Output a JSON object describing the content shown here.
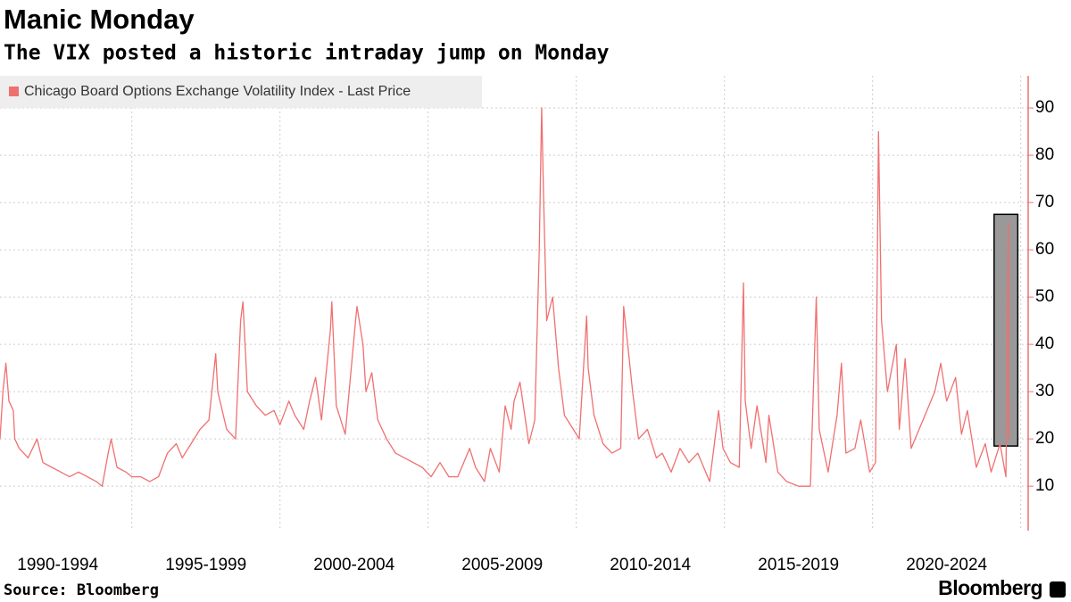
{
  "chart_data": {
    "type": "line",
    "title": "Manic Monday",
    "subtitle": "The VIX posted a historic intraday jump on Monday",
    "source": "Source: Bloomberg",
    "logo": "Bloomberg",
    "series": [
      {
        "name": "Chicago Board Options Exchange Volatility Index - Last Price",
        "color": "#f07070",
        "x": [
          1990.55,
          1990.65,
          1990.75,
          1990.85,
          1991.0,
          1991.05,
          1991.2,
          1991.5,
          1991.8,
          1992.0,
          1992.3,
          1992.6,
          1992.9,
          1993.2,
          1993.5,
          1993.8,
          1994.0,
          1994.2,
          1994.3,
          1994.5,
          1994.8,
          1995.0,
          1995.3,
          1995.6,
          1995.9,
          1996.2,
          1996.5,
          1996.7,
          1997.0,
          1997.3,
          1997.6,
          1997.83,
          1997.9,
          1998.2,
          1998.5,
          1998.67,
          1998.75,
          1998.9,
          1999.2,
          1999.5,
          1999.8,
          2000.0,
          2000.3,
          2000.5,
          2000.8,
          2001.0,
          2001.2,
          2001.4,
          2001.7,
          2001.75,
          2001.9,
          2002.2,
          2002.55,
          2002.6,
          2002.8,
          2002.9,
          2003.1,
          2003.3,
          2003.6,
          2003.9,
          2004.2,
          2004.5,
          2004.8,
          2005.1,
          2005.4,
          2005.7,
          2006.0,
          2006.4,
          2006.6,
          2006.9,
          2007.1,
          2007.4,
          2007.6,
          2007.8,
          2007.9,
          2008.1,
          2008.4,
          2008.6,
          2008.75,
          2008.83,
          2008.9,
          2009.0,
          2009.2,
          2009.4,
          2009.6,
          2009.9,
          2010.1,
          2010.35,
          2010.4,
          2010.6,
          2010.9,
          2011.2,
          2011.5,
          2011.6,
          2011.7,
          2011.9,
          2012.1,
          2012.4,
          2012.7,
          2012.9,
          2013.2,
          2013.5,
          2013.8,
          2014.1,
          2014.5,
          2014.8,
          2014.95,
          2015.2,
          2015.5,
          2015.64,
          2015.7,
          2015.9,
          2016.1,
          2016.4,
          2016.5,
          2016.8,
          2017.1,
          2017.5,
          2017.9,
          2018.1,
          2018.2,
          2018.5,
          2018.8,
          2018.95,
          2019.1,
          2019.4,
          2019.6,
          2019.9,
          2020.1,
          2020.2,
          2020.3,
          2020.5,
          2020.8,
          2020.9,
          2021.1,
          2021.3,
          2021.9,
          2022.1,
          2022.3,
          2022.5,
          2022.8,
          2023.0,
          2023.2,
          2023.5,
          2023.8,
          2024.0,
          2024.3,
          2024.5,
          2024.58,
          2024.6
        ],
        "values": [
          20,
          30,
          36,
          28,
          26,
          20,
          18,
          16,
          20,
          15,
          14,
          13,
          12,
          13,
          12,
          11,
          10,
          17,
          20,
          14,
          13,
          12,
          12,
          11,
          12,
          17,
          19,
          16,
          19,
          22,
          24,
          38,
          30,
          22,
          20,
          45,
          49,
          30,
          27,
          25,
          26,
          23,
          28,
          25,
          22,
          28,
          33,
          24,
          43,
          49,
          27,
          21,
          45,
          48,
          40,
          30,
          34,
          24,
          20,
          17,
          16,
          15,
          14,
          12,
          15,
          12,
          12,
          18,
          14,
          11,
          18,
          13,
          27,
          22,
          28,
          32,
          19,
          24,
          60,
          90,
          70,
          45,
          50,
          35,
          25,
          22,
          20,
          46,
          35,
          25,
          19,
          17,
          18,
          48,
          42,
          30,
          20,
          22,
          16,
          17,
          13,
          18,
          15,
          17,
          11,
          26,
          18,
          15,
          14,
          53,
          28,
          18,
          27,
          15,
          25,
          13,
          11,
          10,
          10,
          50,
          22,
          13,
          25,
          36,
          17,
          18,
          24,
          13,
          15,
          85,
          45,
          30,
          40,
          22,
          37,
          18,
          27,
          30,
          36,
          28,
          33,
          21,
          26,
          14,
          19,
          13,
          19,
          12,
          65.7,
          20
        ]
      }
    ],
    "xlim": [
      1990.55,
      2025.25
    ],
    "xticks": [
      {
        "value": 1992.5,
        "label": "1990-1994"
      },
      {
        "value": 1997.5,
        "label": "1995-1999"
      },
      {
        "value": 2002.5,
        "label": "2000-2004"
      },
      {
        "value": 2007.5,
        "label": "2005-2009"
      },
      {
        "value": 2012.5,
        "label": "2010-2014"
      },
      {
        "value": 2017.5,
        "label": "2015-2019"
      },
      {
        "value": 2022.5,
        "label": "2020-2024"
      }
    ],
    "xgrid": [
      1995,
      2000,
      2005,
      2010,
      2015,
      2020,
      2025
    ],
    "ylim": [
      0.6,
      96.8
    ],
    "yticks": [
      10,
      20,
      30,
      40,
      50,
      60,
      70,
      80,
      90
    ],
    "grid": true,
    "legend": "top-left",
    "highlight": {
      "x": [
        2024.1,
        2024.9
      ],
      "y": [
        18.5,
        67.5
      ],
      "color": "#999999"
    }
  }
}
